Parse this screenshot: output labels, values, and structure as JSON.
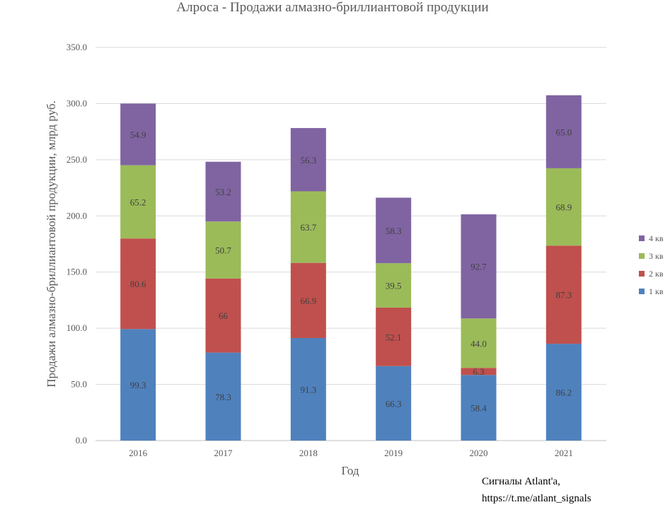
{
  "chart_data": {
    "type": "bar",
    "stacked": true,
    "title": "Алроса - Продажи алмазно-бриллиантовой продукции",
    "xlabel": "Год",
    "ylabel": "Продажи алмазно-бриллиантовой продукции, млрд руб.",
    "ylim": [
      0,
      350
    ],
    "yticks": [
      0,
      50,
      100,
      150,
      200,
      250,
      300,
      350
    ],
    "ytick_labels": [
      "0.0",
      "50.0",
      "100.0",
      "150.0",
      "200.0",
      "250.0",
      "300.0",
      "350.0"
    ],
    "grid": true,
    "legend_position": "right",
    "categories": [
      "2016",
      "2017",
      "2018",
      "2019",
      "2020",
      "2021"
    ],
    "series": [
      {
        "name": "1 кв",
        "color": "#4F81BD",
        "values": [
          99.3,
          78.3,
          91.3,
          66.3,
          58.4,
          86.2
        ],
        "labels": [
          "99.3",
          "78.3",
          "91.3",
          "66.3",
          "58.4",
          "86.2"
        ]
      },
      {
        "name": "2 кв",
        "color": "#C0504D",
        "values": [
          80.6,
          66,
          66.9,
          52.1,
          6.3,
          87.3
        ],
        "labels": [
          "80.6",
          "66",
          "66.9",
          "52.1",
          "6.3",
          "87.3"
        ]
      },
      {
        "name": "3 кв",
        "color": "#9BBB59",
        "values": [
          65.2,
          50.7,
          63.7,
          39.5,
          44.0,
          68.9
        ],
        "labels": [
          "65.2",
          "50.7",
          "63.7",
          "39.5",
          "44.0",
          "68.9"
        ]
      },
      {
        "name": "4 кв",
        "color": "#8064A2",
        "values": [
          54.9,
          53.2,
          56.3,
          58.3,
          92.7,
          65.0
        ],
        "labels": [
          "54.9",
          "53.2",
          "56.3",
          "58.3",
          "92.7",
          "65.0"
        ]
      }
    ]
  },
  "credit": {
    "line1": "Сигналы Atlant'a,",
    "line2": "https://t.me/atlant_signals"
  }
}
